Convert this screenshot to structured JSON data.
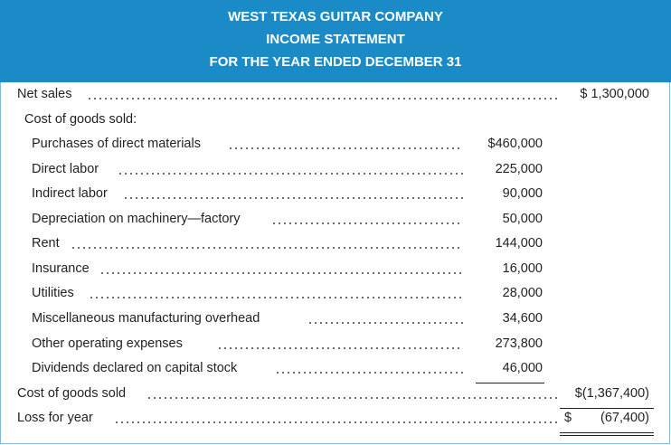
{
  "header": {
    "company": "WEST TEXAS GUITAR COMPANY",
    "statement": "INCOME STATEMENT",
    "period": "FOR THE YEAR ENDED DECEMBER 31"
  },
  "rows": {
    "net_sales": {
      "label": "Net sales",
      "total": "$ 1,300,000"
    },
    "cogs_heading": {
      "label": "Cost of goods sold:"
    },
    "items": [
      {
        "label": "Purchases of direct materials",
        "amount": "$460,000"
      },
      {
        "label": "Direct labor",
        "amount": "225,000"
      },
      {
        "label": "Indirect labor",
        "amount": "90,000"
      },
      {
        "label": "Depreciation on machinery—factory",
        "amount": "50,000"
      },
      {
        "label": "Rent",
        "amount": "144,000"
      },
      {
        "label": "Insurance",
        "amount": "16,000"
      },
      {
        "label": "Utilities",
        "amount": "28,000"
      },
      {
        "label": "Miscellaneous manufacturing overhead",
        "amount": "34,600"
      },
      {
        "label": "Other operating expenses",
        "amount": "273,800"
      },
      {
        "label": "Dividends declared on capital stock",
        "amount": "46,000"
      }
    ],
    "cogs_total": {
      "label": "Cost of goods sold",
      "total": "$(1,367,400)"
    },
    "loss": {
      "label": "Loss for year",
      "dollar": "$",
      "total": "(67,400)"
    }
  }
}
